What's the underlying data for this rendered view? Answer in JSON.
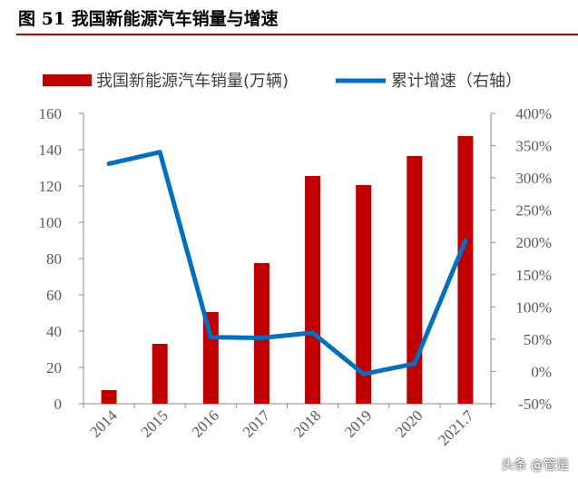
{
  "header": {
    "title": "图 51  我国新能源汽车销量与增速"
  },
  "watermark": "头条 @管是",
  "chart_data": {
    "type": "bar",
    "title": "",
    "categories": [
      "2014",
      "2015",
      "2016",
      "2017",
      "2018",
      "2019",
      "2020",
      "2021.7"
    ],
    "series": [
      {
        "name": "我国新能源汽车销量(万辆)",
        "type": "bar",
        "axis": "left",
        "values": [
          7.5,
          33,
          50.5,
          77.5,
          125.5,
          120.5,
          136.5,
          147.5
        ],
        "color": "#c00000"
      },
      {
        "name": "累计增速（右轴）",
        "type": "line",
        "axis": "right",
        "values": [
          322,
          340,
          53,
          52,
          60,
          -4,
          12,
          203
        ],
        "color": "#0070c0"
      }
    ],
    "y_left": {
      "min": 0,
      "max": 160,
      "step": 20,
      "ticks": [
        "0",
        "20",
        "40",
        "60",
        "80",
        "100",
        "120",
        "140",
        "160"
      ]
    },
    "y_right": {
      "min": -50,
      "max": 400,
      "step": 50,
      "ticks": [
        "-50%",
        "0%",
        "50%",
        "100%",
        "150%",
        "200%",
        "250%",
        "300%",
        "350%",
        "400%"
      ]
    },
    "grid": false,
    "legend": "top"
  }
}
